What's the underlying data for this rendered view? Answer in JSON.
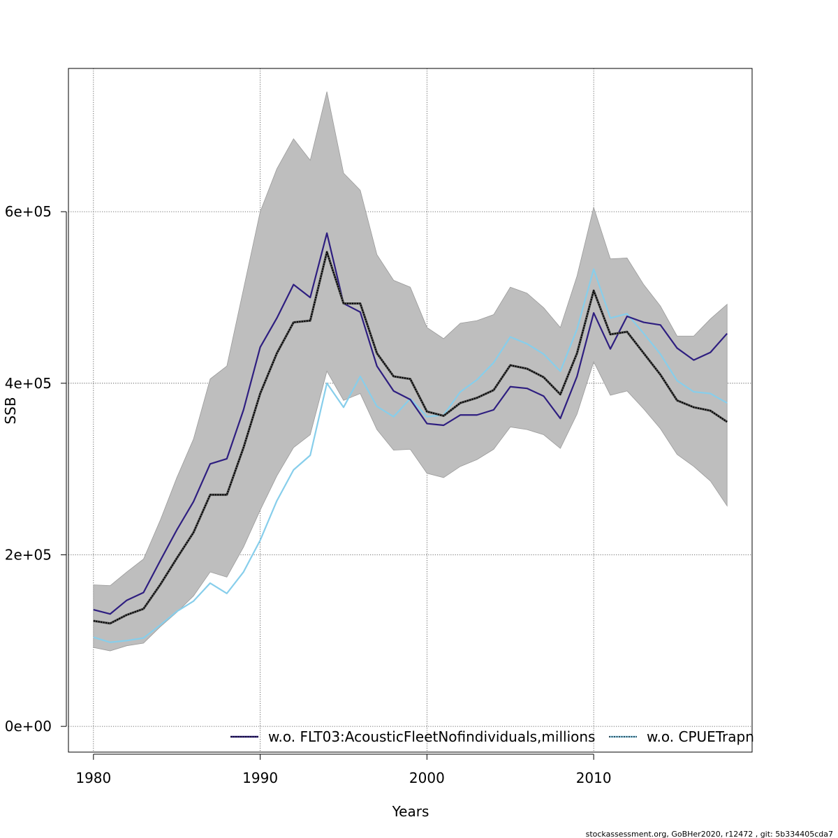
{
  "chart_data": {
    "type": "line",
    "xlabel": "Years",
    "ylabel": "SSB",
    "xlim": [
      1978.5,
      2019.5
    ],
    "ylim": [
      -30000,
      767000
    ],
    "x_ticks": [
      1980,
      1990,
      2000,
      2010
    ],
    "y_ticks": [
      0,
      200000,
      400000,
      600000
    ],
    "y_tick_labels": [
      "0e+00",
      "2e+05",
      "4e+05",
      "6e+05"
    ],
    "grid": true,
    "legend_position": "bottom",
    "colors": {
      "band": "#bebebe",
      "base": "#000000",
      "flt03": "#2e1e80",
      "cpue": "#87ceeb"
    },
    "x": [
      1980,
      1981,
      1982,
      1983,
      1984,
      1985,
      1986,
      1987,
      1988,
      1989,
      1990,
      1991,
      1992,
      1993,
      1994,
      1995,
      1996,
      1997,
      1998,
      1999,
      2000,
      2001,
      2002,
      2003,
      2004,
      2005,
      2006,
      2007,
      2008,
      2009,
      2010,
      2011,
      2012,
      2013,
      2014,
      2015,
      2016,
      2017,
      2018
    ],
    "band": {
      "upper": [
        165000,
        164000,
        180000,
        195000,
        240000,
        290000,
        335000,
        405000,
        420000,
        510000,
        600000,
        650000,
        685000,
        660000,
        740000,
        645000,
        625000,
        550000,
        520000,
        512000,
        465000,
        452000,
        470000,
        473000,
        480000,
        512000,
        505000,
        488000,
        465000,
        525000,
        605000,
        545000,
        546000,
        515000,
        490000,
        455000,
        455000,
        475000,
        492000
      ],
      "lower": [
        92000,
        88000,
        94000,
        97000,
        116000,
        133000,
        152000,
        180000,
        174000,
        209000,
        252000,
        292000,
        325000,
        340000,
        414000,
        380000,
        388000,
        346000,
        322000,
        323000,
        295000,
        290000,
        303000,
        311000,
        323000,
        349000,
        346000,
        340000,
        324000,
        364000,
        425000,
        386000,
        391000,
        370000,
        347000,
        317000,
        303000,
        286000,
        257000
      ]
    },
    "series": [
      {
        "key": "base",
        "values": [
          123000,
          120000,
          130000,
          137000,
          165000,
          196000,
          226000,
          270000,
          270000,
          325000,
          388000,
          435000,
          471000,
          473000,
          553000,
          493000,
          493000,
          435000,
          408000,
          405000,
          367000,
          362000,
          377000,
          383000,
          392000,
          421000,
          417000,
          407000,
          387000,
          435000,
          508000,
          457000,
          460000,
          435000,
          410000,
          380000,
          372000,
          368000,
          355000
        ]
      },
      {
        "key": "flt03",
        "name": "w.o. FLT03:AcousticFleetNofindividuals,millions",
        "values": [
          136000,
          131000,
          147000,
          156000,
          193000,
          229000,
          262000,
          306000,
          312000,
          369000,
          442000,
          476000,
          515000,
          500000,
          575000,
          493000,
          483000,
          420000,
          391000,
          381000,
          353000,
          351000,
          363000,
          363000,
          369000,
          396000,
          394000,
          385000,
          359000,
          408000,
          482000,
          440000,
          478000,
          471000,
          468000,
          441000,
          427000,
          436000,
          458000
        ]
      },
      {
        "key": "cpue",
        "name": "w.o. CPUETrapn",
        "values": [
          104000,
          98000,
          100000,
          103000,
          118000,
          134000,
          146000,
          167000,
          155000,
          180000,
          217000,
          263000,
          299000,
          316000,
          400000,
          372000,
          408000,
          373000,
          361000,
          382000,
          361000,
          363000,
          390000,
          404000,
          424000,
          454000,
          446000,
          434000,
          414000,
          463000,
          533000,
          476000,
          481000,
          458000,
          434000,
          403000,
          390000,
          388000,
          377000
        ]
      }
    ]
  },
  "footer": "stockassessment.org, GoBHer2020, r12472 , git: 5b334405cda7"
}
